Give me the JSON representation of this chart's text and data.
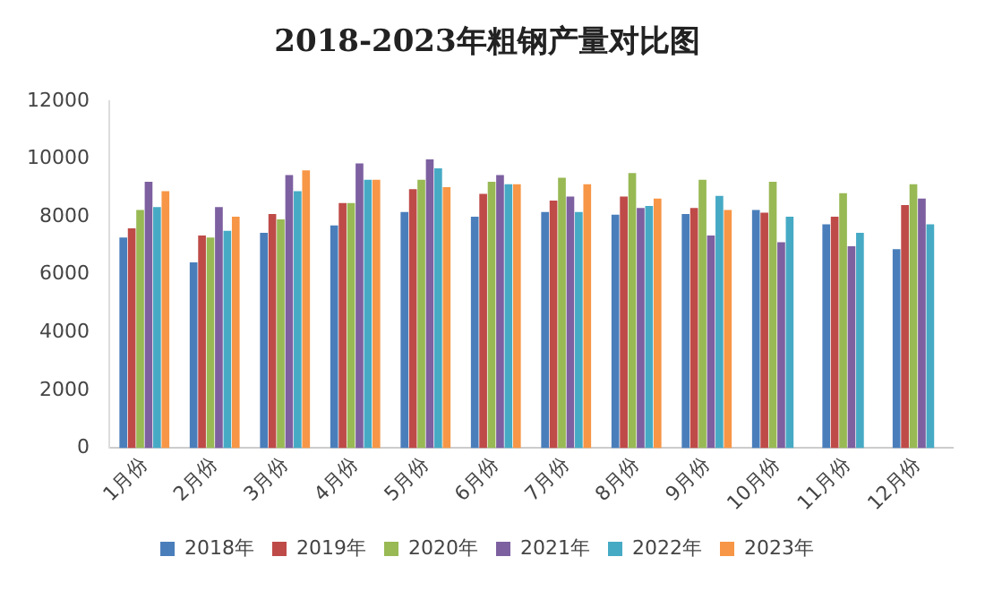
{
  "chart_data": {
    "type": "bar",
    "title": "2018-2023年粗钢产量对比图",
    "categories": [
      "1月份",
      "2月份",
      "3月份",
      "4月份",
      "5月份",
      "6月份",
      "7月份",
      "8月份",
      "9月份",
      "10月份",
      "11月份",
      "12月份"
    ],
    "series": [
      {
        "name": "2018年",
        "color": "#4a7ebb",
        "values": [
          7280,
          6420,
          7440,
          7700,
          8160,
          8000,
          8160,
          8070,
          8090,
          8230,
          7740,
          6880
        ]
      },
      {
        "name": "2019年",
        "color": "#be4b48",
        "values": [
          7600,
          7350,
          8090,
          8470,
          8950,
          8790,
          8560,
          8700,
          8300,
          8140,
          8000,
          8400
        ]
      },
      {
        "name": "2020年",
        "color": "#98b954",
        "values": [
          8230,
          7280,
          7910,
          8470,
          9280,
          9210,
          9350,
          9510,
          9280,
          9210,
          8810,
          9120
        ]
      },
      {
        "name": "2021年",
        "color": "#7d60a0",
        "values": [
          9210,
          8330,
          9440,
          9840,
          9980,
          9440,
          8700,
          8300,
          7350,
          7120,
          6980,
          8630
        ]
      },
      {
        "name": "2022年",
        "color": "#46aac5",
        "values": [
          8330,
          7510,
          8880,
          9280,
          9670,
          9120,
          8160,
          8370,
          8720,
          8000,
          7440,
          7740
        ]
      },
      {
        "name": "2023年",
        "color": "#f79646",
        "values": [
          8880,
          8000,
          9600,
          9280,
          9020,
          9120,
          9120,
          8630,
          8230,
          null,
          null,
          null
        ]
      }
    ],
    "ylim": [
      0,
      12000
    ],
    "yticks": [
      0,
      2000,
      4000,
      6000,
      8000,
      10000,
      12000
    ],
    "grid": false,
    "legend": "bottom"
  }
}
